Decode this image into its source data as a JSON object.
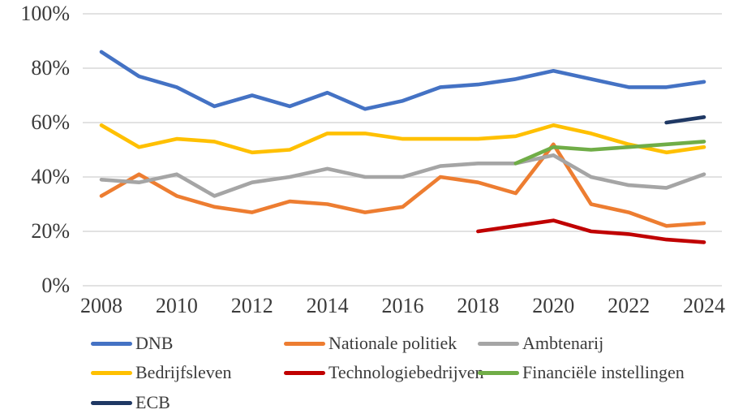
{
  "chart_data": {
    "type": "line",
    "title": "",
    "xlabel": "",
    "ylabel": "",
    "grid": "horizontal",
    "legend_position": "bottom-left",
    "categories": [
      2008,
      2009,
      2010,
      2011,
      2012,
      2013,
      2014,
      2015,
      2016,
      2017,
      2018,
      2019,
      2020,
      2021,
      2022,
      2023,
      2024
    ],
    "x_tick_labels": [
      "2008",
      "2010",
      "2012",
      "2014",
      "2016",
      "2018",
      "2020",
      "2022",
      "2024"
    ],
    "y_ticks": [
      {
        "value": 0,
        "label": "0%"
      },
      {
        "value": 20,
        "label": "20%"
      },
      {
        "value": 40,
        "label": "40%"
      },
      {
        "value": 60,
        "label": "60%"
      },
      {
        "value": 80,
        "label": "80%"
      },
      {
        "value": 100,
        "label": "100%"
      }
    ],
    "ylim": [
      0,
      100
    ],
    "y_unit": "%",
    "series": [
      {
        "name": "DNB",
        "color": "#4472C4",
        "values": [
          86,
          77,
          73,
          66,
          70,
          66,
          71,
          65,
          68,
          73,
          74,
          76,
          79,
          76,
          73,
          73,
          75
        ]
      },
      {
        "name": "Nationale politiek",
        "color": "#ED7D31",
        "values": [
          33,
          41,
          33,
          29,
          27,
          31,
          30,
          27,
          29,
          40,
          38,
          34,
          52,
          30,
          27,
          22,
          23
        ]
      },
      {
        "name": "Ambtenarij",
        "color": "#A5A5A5",
        "values": [
          39,
          38,
          41,
          33,
          38,
          40,
          43,
          40,
          40,
          44,
          45,
          45,
          48,
          40,
          37,
          36,
          41
        ]
      },
      {
        "name": "Bedrijfsleven",
        "color": "#FFC000",
        "values": [
          59,
          51,
          54,
          53,
          49,
          50,
          56,
          56,
          54,
          54,
          54,
          55,
          59,
          56,
          52,
          49,
          51
        ]
      },
      {
        "name": "Technologiebedrijven",
        "color": "#C00000",
        "values": [
          null,
          null,
          null,
          null,
          null,
          null,
          null,
          null,
          null,
          null,
          20,
          22,
          24,
          20,
          19,
          17,
          16
        ]
      },
      {
        "name": "Financiële instellingen",
        "color": "#70AD47",
        "values": [
          null,
          null,
          null,
          null,
          null,
          null,
          null,
          null,
          null,
          null,
          null,
          45,
          51,
          50,
          51,
          52,
          53
        ]
      },
      {
        "name": "ECB",
        "color": "#1F3864",
        "values": [
          null,
          null,
          null,
          null,
          null,
          null,
          null,
          null,
          null,
          null,
          null,
          null,
          null,
          null,
          null,
          60,
          62
        ]
      }
    ],
    "legend_rows": [
      [
        "DNB",
        "Nationale politiek",
        "Ambtenarij"
      ],
      [
        "Bedrijfsleven",
        "Technologiebedrijven",
        "Financiële instellingen"
      ],
      [
        "ECB"
      ]
    ]
  },
  "colors": {
    "background": "#FFFFFF",
    "gridline": "#D9D9D9",
    "axis_text": "#3B3B3B"
  }
}
